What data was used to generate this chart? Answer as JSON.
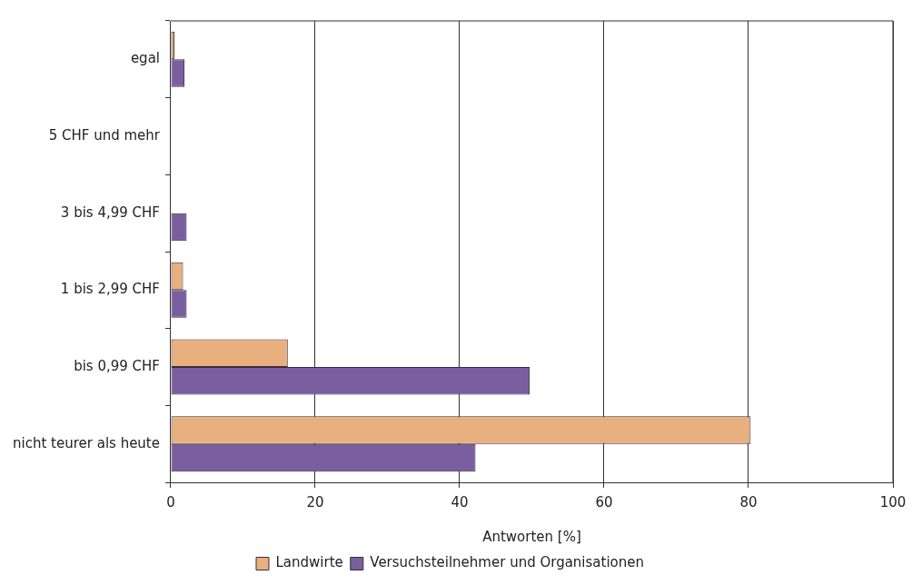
{
  "chart_data": {
    "type": "bar",
    "orientation": "horizontal",
    "xlabel": "Antworten [%]",
    "categories": [
      "egal",
      "5 CHF und mehr",
      "3 bis 4,99 CHF",
      "1 bis 2,99 CHF",
      "bis 0,99 CHF",
      "nicht teurer als heute"
    ],
    "series": [
      {
        "name": "Landwirte",
        "color": "#e9b07f",
        "values": [
          0.5,
          0,
          0,
          1.7,
          16.2,
          80.3
        ]
      },
      {
        "name": "Versuchsteilnehmer und Organisationen",
        "color": "#7a5fa0",
        "values": [
          1.9,
          0,
          2.2,
          2.2,
          49.7,
          42.2
        ]
      }
    ],
    "xlim": [
      0,
      100
    ],
    "xticks": [
      0,
      20,
      40,
      60,
      80,
      100
    ],
    "grid": "x",
    "legend": "bottom"
  }
}
